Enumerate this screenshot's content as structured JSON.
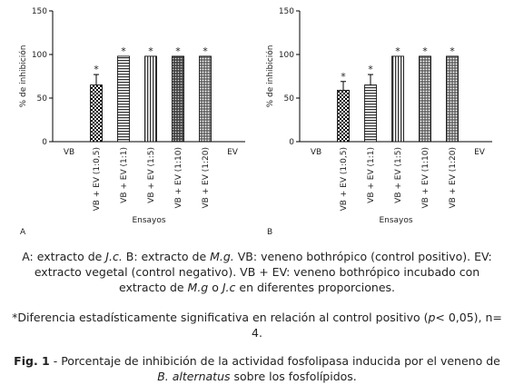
{
  "chart_data": [
    {
      "type": "bar",
      "panel": "A",
      "y_label": "% de inhibición",
      "x_label": "Ensayos",
      "categories": [
        "VB",
        "VB + EV (1:0,5)",
        "VB + EV (1:1)",
        "VB + EV (1:5)",
        "VB + EV (1:10)",
        "VB + EV (1:20)",
        "EV"
      ],
      "values": [
        0,
        65,
        98,
        98,
        98,
        98,
        0
      ],
      "errors": [
        null,
        12,
        null,
        null,
        null,
        null,
        null
      ],
      "annotations": [
        null,
        "*",
        "*",
        "*",
        "*",
        "*",
        null
      ],
      "patterns": [
        null,
        "check",
        "hstripe",
        "vstripe",
        "darkdots",
        "dots",
        null
      ],
      "ylim": [
        0,
        150
      ],
      "yticks": [
        0,
        50,
        100,
        150
      ]
    },
    {
      "type": "bar",
      "panel": "B",
      "y_label": "% de inhibición",
      "x_label": "Ensayos",
      "categories": [
        "VB",
        "VB + EV (1:0,5)",
        "VB + EV (1:1)",
        "VB + EV (1:5)",
        "VB + EV (1:10)",
        "VB + EV (1:20)",
        "EV"
      ],
      "values": [
        0,
        59,
        65,
        98,
        98,
        98,
        0
      ],
      "errors": [
        null,
        10,
        12,
        null,
        null,
        null,
        null
      ],
      "annotations": [
        null,
        "*",
        "*",
        "*",
        "*",
        "*",
        null
      ],
      "patterns": [
        null,
        "check",
        "hstripe",
        "vstripe",
        "dots",
        "dots",
        null
      ],
      "ylim": [
        0,
        150
      ],
      "yticks": [
        0,
        50,
        100,
        150
      ]
    }
  ],
  "caption": {
    "legend": [
      {
        "text": "A: extracto de "
      },
      {
        "text": "J.c.",
        "italic": true
      },
      {
        "text": " B: extracto de "
      },
      {
        "text": "M.g.",
        "italic": true
      },
      {
        "text": " VB: veneno bothrópico (control positivo). EV: extracto vegetal (control negativo). VB + EV: veneno bothrópico incubado con extracto de "
      },
      {
        "text": "M.g",
        "italic": true
      },
      {
        "text": " o "
      },
      {
        "text": "J.c",
        "italic": true
      },
      {
        "text": " en diferentes proporciones."
      }
    ],
    "note": [
      {
        "text": "*Diferencia estadísticamente significativa en relación al control positivo ("
      },
      {
        "text": "p",
        "italic": true
      },
      {
        "text": "< 0,05), n= 4."
      }
    ],
    "figure": [
      {
        "text": "Fig. 1",
        "bold": true
      },
      {
        "text": " - Porcentaje de inhibición de la actividad fosfolipasa inducida por el veneno de "
      },
      {
        "text": "B. alternatus",
        "italic": true
      },
      {
        "text": " sobre los fosfolípidos."
      }
    ]
  }
}
